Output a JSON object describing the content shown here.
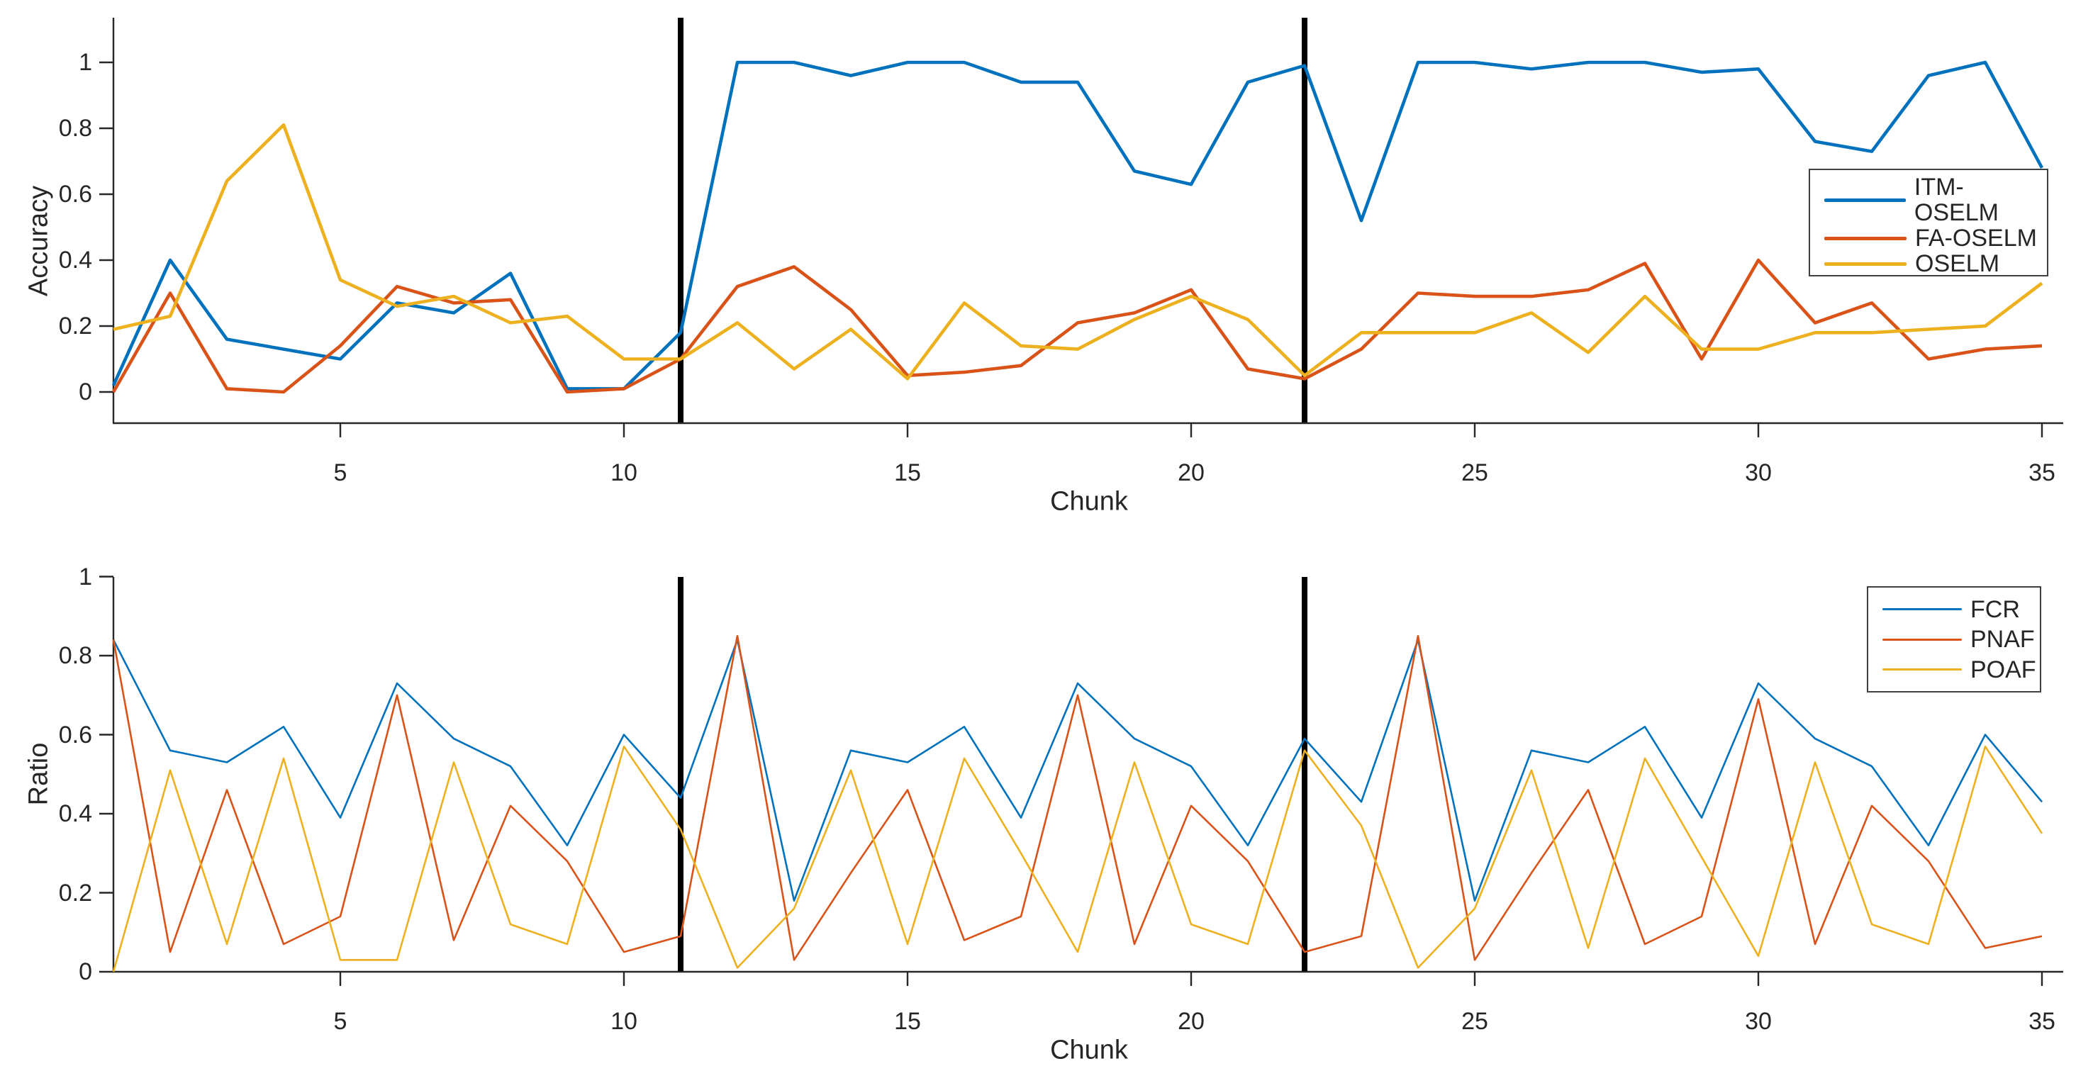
{
  "chart_data": [
    {
      "type": "line",
      "ylabel": "Accuracy",
      "xlabel": "Chunk",
      "x_start": 1,
      "x_step": 1,
      "x_range": [
        1,
        35
      ],
      "ylim": [
        0,
        1
      ],
      "xticks": [
        5,
        10,
        15,
        20,
        25,
        30,
        35
      ],
      "yticks": [
        0,
        0.2,
        0.4,
        0.6,
        0.8,
        1
      ],
      "grid": false,
      "legend_position": "middle-right",
      "vertical_markers": {
        "x": [
          11,
          22
        ],
        "color": "#000000"
      },
      "series": [
        {
          "name": "ITM-OSELM",
          "color": "#0072BD",
          "values": [
            0.02,
            0.4,
            0.16,
            0.13,
            0.1,
            0.27,
            0.24,
            0.36,
            0.01,
            0.01,
            0.18,
            1.0,
            1.0,
            0.96,
            1.0,
            1.0,
            0.94,
            0.94,
            0.67,
            0.63,
            0.94,
            0.99,
            0.52,
            1.0,
            1.0,
            0.98,
            1.0,
            1.0,
            0.97,
            0.98,
            0.76,
            0.73,
            0.96,
            1.0,
            0.68
          ]
        },
        {
          "name": "FA-OSELM",
          "color": "#D95319",
          "values": [
            0.0,
            0.3,
            0.01,
            0.0,
            0.14,
            0.32,
            0.27,
            0.28,
            0.0,
            0.01,
            0.1,
            0.32,
            0.38,
            0.25,
            0.05,
            0.06,
            0.08,
            0.21,
            0.24,
            0.31,
            0.07,
            0.04,
            0.13,
            0.3,
            0.29,
            0.29,
            0.31,
            0.39,
            0.1,
            0.4,
            0.21,
            0.27,
            0.1,
            0.13,
            0.14
          ]
        },
        {
          "name": "OSELM",
          "color": "#EDB120",
          "values": [
            0.19,
            0.23,
            0.64,
            0.81,
            0.34,
            0.26,
            0.29,
            0.21,
            0.23,
            0.1,
            0.1,
            0.21,
            0.07,
            0.19,
            0.04,
            0.27,
            0.14,
            0.13,
            0.22,
            0.29,
            0.22,
            0.05,
            0.18,
            0.18,
            0.18,
            0.24,
            0.12,
            0.29,
            0.13,
            0.13,
            0.18,
            0.18,
            0.19,
            0.2,
            0.33
          ]
        }
      ]
    },
    {
      "type": "line",
      "ylabel": "Ratio",
      "xlabel": "Chunk",
      "x_start": 1,
      "x_step": 1,
      "x_range": [
        1,
        35
      ],
      "ylim": [
        0,
        1
      ],
      "xticks": [
        5,
        10,
        15,
        20,
        25,
        30,
        35
      ],
      "yticks": [
        0,
        0.2,
        0.4,
        0.6,
        0.8,
        1
      ],
      "grid": false,
      "legend_position": "top-right",
      "vertical_markers": {
        "x": [
          11,
          22
        ],
        "color": "#000000"
      },
      "series": [
        {
          "name": "FCR",
          "color": "#0072BD",
          "values": [
            0.84,
            0.56,
            0.53,
            0.62,
            0.39,
            0.73,
            0.59,
            0.52,
            0.32,
            0.6,
            0.44,
            0.84,
            0.18,
            0.56,
            0.53,
            0.62,
            0.39,
            0.73,
            0.59,
            0.52,
            0.32,
            0.59,
            0.43,
            0.84,
            0.18,
            0.56,
            0.53,
            0.62,
            0.39,
            0.73,
            0.59,
            0.52,
            0.32,
            0.6,
            0.43
          ]
        },
        {
          "name": "PNAF",
          "color": "#D95319",
          "values": [
            0.84,
            0.05,
            0.46,
            0.07,
            0.14,
            0.7,
            0.08,
            0.42,
            0.28,
            0.05,
            0.09,
            0.85,
            0.03,
            0.25,
            0.46,
            0.08,
            0.14,
            0.7,
            0.07,
            0.42,
            0.28,
            0.05,
            0.09,
            0.85,
            0.03,
            0.25,
            0.46,
            0.07,
            0.14,
            0.69,
            0.07,
            0.42,
            0.28,
            0.06,
            0.09
          ]
        },
        {
          "name": "POAF",
          "color": "#EDB120",
          "values": [
            0.0,
            0.51,
            0.07,
            0.54,
            0.03,
            0.03,
            0.53,
            0.12,
            0.07,
            0.57,
            0.36,
            0.01,
            0.16,
            0.51,
            0.07,
            0.54,
            0.3,
            0.05,
            0.53,
            0.12,
            0.07,
            0.56,
            0.37,
            0.01,
            0.16,
            0.51,
            0.06,
            0.54,
            0.29,
            0.04,
            0.53,
            0.12,
            0.07,
            0.57,
            0.35
          ]
        }
      ]
    }
  ]
}
